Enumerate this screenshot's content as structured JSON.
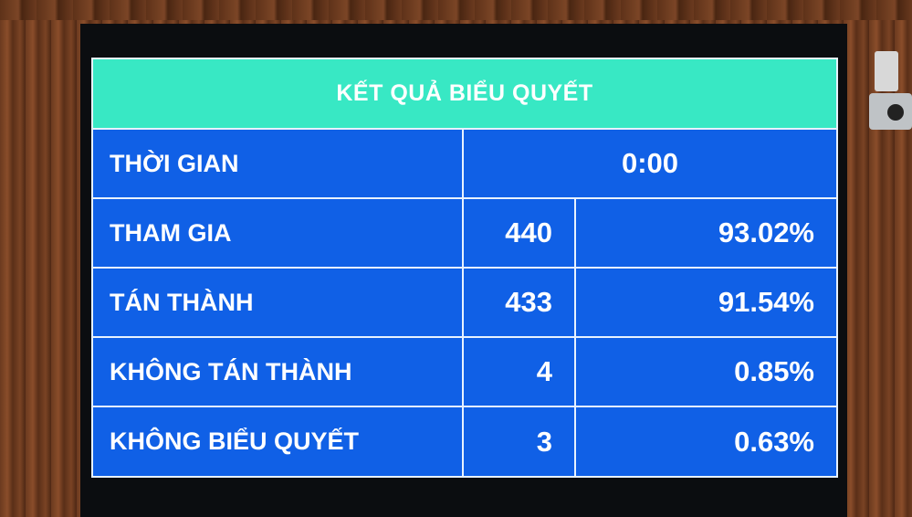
{
  "title": "KẾT QUẢ BIỂU QUYẾT",
  "time": {
    "label": "THỜI GIAN",
    "value": "0:00"
  },
  "rows": [
    {
      "label": "THAM GIA",
      "count": "440",
      "percent": "93.02%"
    },
    {
      "label": "TÁN THÀNH",
      "count": "433",
      "percent": "91.54%"
    },
    {
      "label": "KHÔNG TÁN THÀNH",
      "count": "4",
      "percent": "0.85%"
    },
    {
      "label": "KHÔNG BIỂU QUYẾT",
      "count": "3",
      "percent": "0.63%"
    }
  ],
  "colors": {
    "header": "#38e8c4",
    "cells": "#1060e6",
    "text": "#ffffff"
  }
}
